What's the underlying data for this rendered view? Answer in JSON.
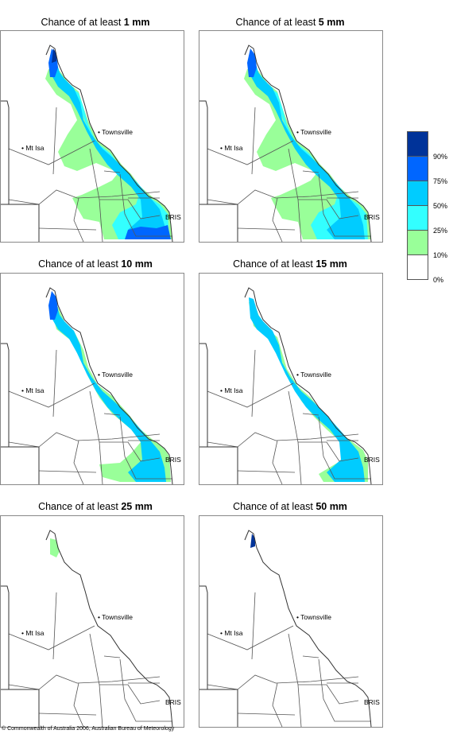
{
  "panels": [
    {
      "prefix": "Chance of at least ",
      "amount": "1 mm",
      "level": 5
    },
    {
      "prefix": "Chance of at least ",
      "amount": "5 mm",
      "level": 4
    },
    {
      "prefix": "Chance of at least ",
      "amount": "10 mm",
      "level": 3
    },
    {
      "prefix": "Chance of at least ",
      "amount": "15 mm",
      "level": 2
    },
    {
      "prefix": "Chance of at least ",
      "amount": "25 mm",
      "level": 1
    },
    {
      "prefix": "Chance of at least ",
      "amount": "50 mm",
      "level": 0
    }
  ],
  "places": {
    "townsville": "Townsville",
    "mt_isa": "Mt Isa",
    "brisbane": "BRIS"
  },
  "legend": {
    "ticks": [
      "90%",
      "75%",
      "50%",
      "25%",
      "10%",
      "0%"
    ],
    "colors": [
      "#003399",
      "#0066ff",
      "#00ccff",
      "#33ffff",
      "#99ff99",
      "#ffffff"
    ]
  },
  "footer": {
    "copyright": "© Commonwealth of Australia 2006, Australian Bureau of Meteorology"
  }
}
